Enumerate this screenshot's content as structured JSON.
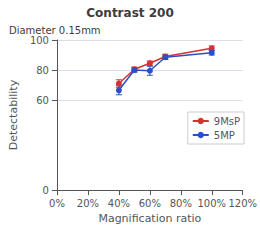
{
  "chart_data": {
    "type": "line",
    "title": "Contrast 200",
    "subtitle": "Diameter 0.15mm",
    "xlabel": "Magnification ratio",
    "ylabel": "Detectability",
    "x": [
      0.4,
      0.5,
      0.6,
      0.7,
      1.0
    ],
    "series": [
      {
        "name": "9MsP",
        "color": "#d93030",
        "marker": "circle",
        "values": [
          71.0,
          80.5,
          84.5,
          89.0,
          94.5
        ],
        "yerr": [
          2.5,
          1.5,
          1.5,
          1.5,
          1.5
        ]
      },
      {
        "name": "5MP",
        "color": "#2c4fc7",
        "marker": "circle",
        "values": [
          66.5,
          80.0,
          79.5,
          88.5,
          91.5
        ],
        "yerr": [
          3.0,
          1.5,
          3.0,
          1.5,
          1.5
        ]
      }
    ],
    "xlim": [
      0,
      1.2
    ],
    "xticks": [
      {
        "value": 0,
        "label": "0%"
      },
      {
        "value": 0.2,
        "label": "20%"
      },
      {
        "value": 0.4,
        "label": "40%"
      },
      {
        "value": 0.6,
        "label": "60%"
      },
      {
        "value": 0.8,
        "label": "80%"
      },
      {
        "value": 1.0,
        "label": "100%"
      },
      {
        "value": 1.2,
        "label": "120%"
      }
    ],
    "ylim": [
      0,
      100
    ],
    "yticks": [
      0,
      60,
      80,
      100
    ],
    "grid": true,
    "legend": "right"
  }
}
